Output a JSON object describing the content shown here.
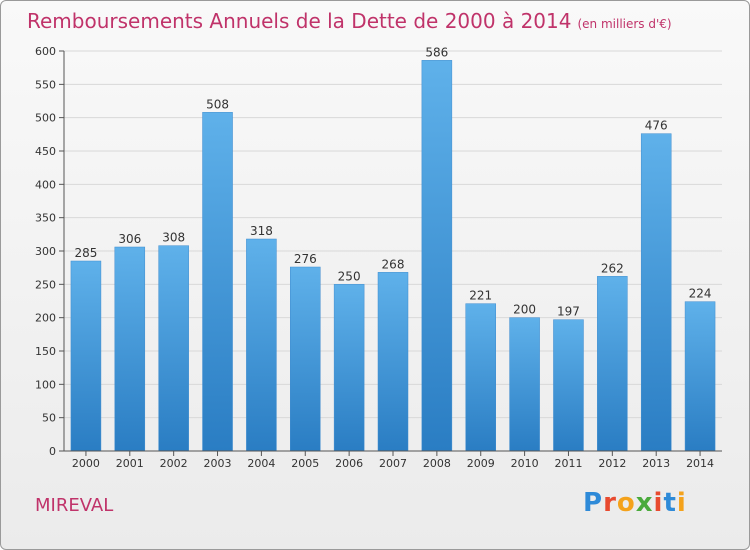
{
  "header": {
    "title": "Remboursements Annuels de la Dette de 2000 à 2014",
    "subtitle": "(en milliers d'€)"
  },
  "footer": {
    "commune": "MIREVAL",
    "logo": "Proxiti",
    "logo_colors": [
      "#2e8ad8",
      "#e84a2f",
      "#f4a21b",
      "#4aaa3c",
      "#e84a2f",
      "#2e8ad8",
      "#f4a21b"
    ]
  },
  "colors": {
    "title": "#c0336a",
    "bar_top": "#5fb1ea",
    "bar_bottom": "#2a7dc3",
    "axis": "#555555",
    "grid": "#d8d8d8"
  },
  "chart_data": {
    "type": "bar",
    "title": "Remboursements Annuels de la Dette de 2000 à 2014",
    "subtitle": "(en milliers d'€)",
    "xlabel": "",
    "ylabel": "",
    "categories": [
      "2000",
      "2001",
      "2002",
      "2003",
      "2004",
      "2005",
      "2006",
      "2007",
      "2008",
      "2009",
      "2010",
      "2011",
      "2012",
      "2013",
      "2014"
    ],
    "values": [
      285,
      306,
      308,
      508,
      318,
      276,
      250,
      268,
      586,
      221,
      200,
      197,
      262,
      476,
      224
    ],
    "ylim": [
      0,
      600
    ],
    "yticks": [
      0,
      50,
      100,
      150,
      200,
      250,
      300,
      350,
      400,
      450,
      500,
      550,
      600
    ],
    "grid": true,
    "data_labels": true
  }
}
